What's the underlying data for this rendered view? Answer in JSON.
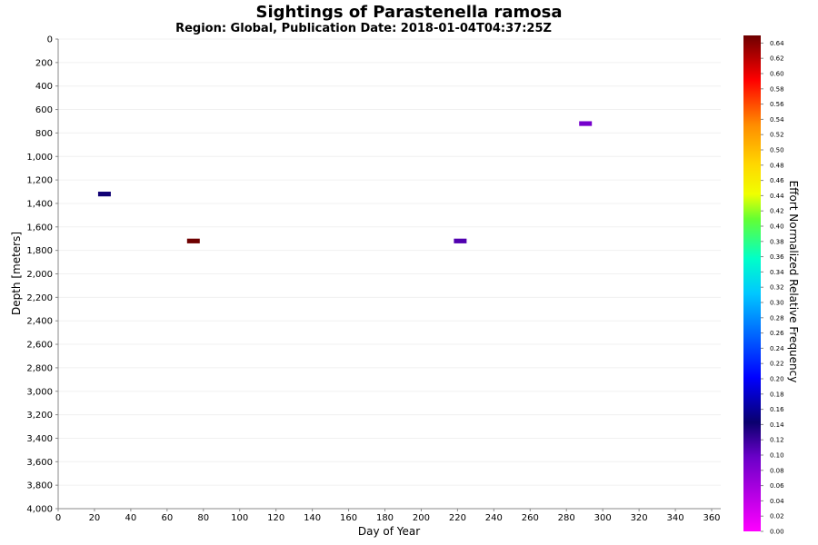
{
  "chart_data": {
    "type": "heatmap",
    "title": "Sightings of Parastenella ramosa",
    "subtitle": "Region: Global, Publication Date: 2018-01-04T04:37:25Z",
    "xlabel": "Day of Year",
    "ylabel": "Depth [meters]",
    "xlim": [
      0,
      365
    ],
    "ylim": [
      0,
      4000
    ],
    "y_inverted": true,
    "x_ticks": [
      "0",
      "20",
      "40",
      "60",
      "80",
      "100",
      "120",
      "140",
      "160",
      "180",
      "200",
      "220",
      "240",
      "260",
      "280",
      "300",
      "320",
      "340",
      "360"
    ],
    "y_ticks": [
      "0",
      "200",
      "400",
      "600",
      "800",
      "1,000",
      "1,200",
      "1,400",
      "1,600",
      "1,800",
      "2,000",
      "2,200",
      "2,400",
      "2,600",
      "2,800",
      "3,000",
      "3,200",
      "3,400",
      "3,600",
      "3,800",
      "4,000"
    ],
    "colorbar": {
      "label": "Effort Normalized Relative Frequency",
      "range": [
        0,
        0.65
      ],
      "ticks": [
        "0.00",
        "0.02",
        "0.04",
        "0.06",
        "0.08",
        "0.10",
        "0.12",
        "0.14",
        "0.16",
        "0.18",
        "0.20",
        "0.22",
        "0.24",
        "0.26",
        "0.28",
        "0.30",
        "0.32",
        "0.34",
        "0.36",
        "0.38",
        "0.40",
        "0.42",
        "0.44",
        "0.46",
        "0.48",
        "0.50",
        "0.52",
        "0.54",
        "0.56",
        "0.58",
        "0.60",
        "0.62",
        "0.64"
      ]
    },
    "cells": [
      {
        "day_start": 22,
        "day_end": 29,
        "depth_top": 1300,
        "depth_bottom": 1340,
        "value": 0.14
      },
      {
        "day_start": 71,
        "day_end": 78,
        "depth_top": 1700,
        "depth_bottom": 1740,
        "value": 0.65
      },
      {
        "day_start": 218,
        "day_end": 225,
        "depth_top": 1700,
        "depth_bottom": 1740,
        "value": 0.11
      },
      {
        "day_start": 287,
        "day_end": 294,
        "depth_top": 700,
        "depth_bottom": 740,
        "value": 0.09
      }
    ],
    "grid": true,
    "legend": "right colorbar"
  }
}
